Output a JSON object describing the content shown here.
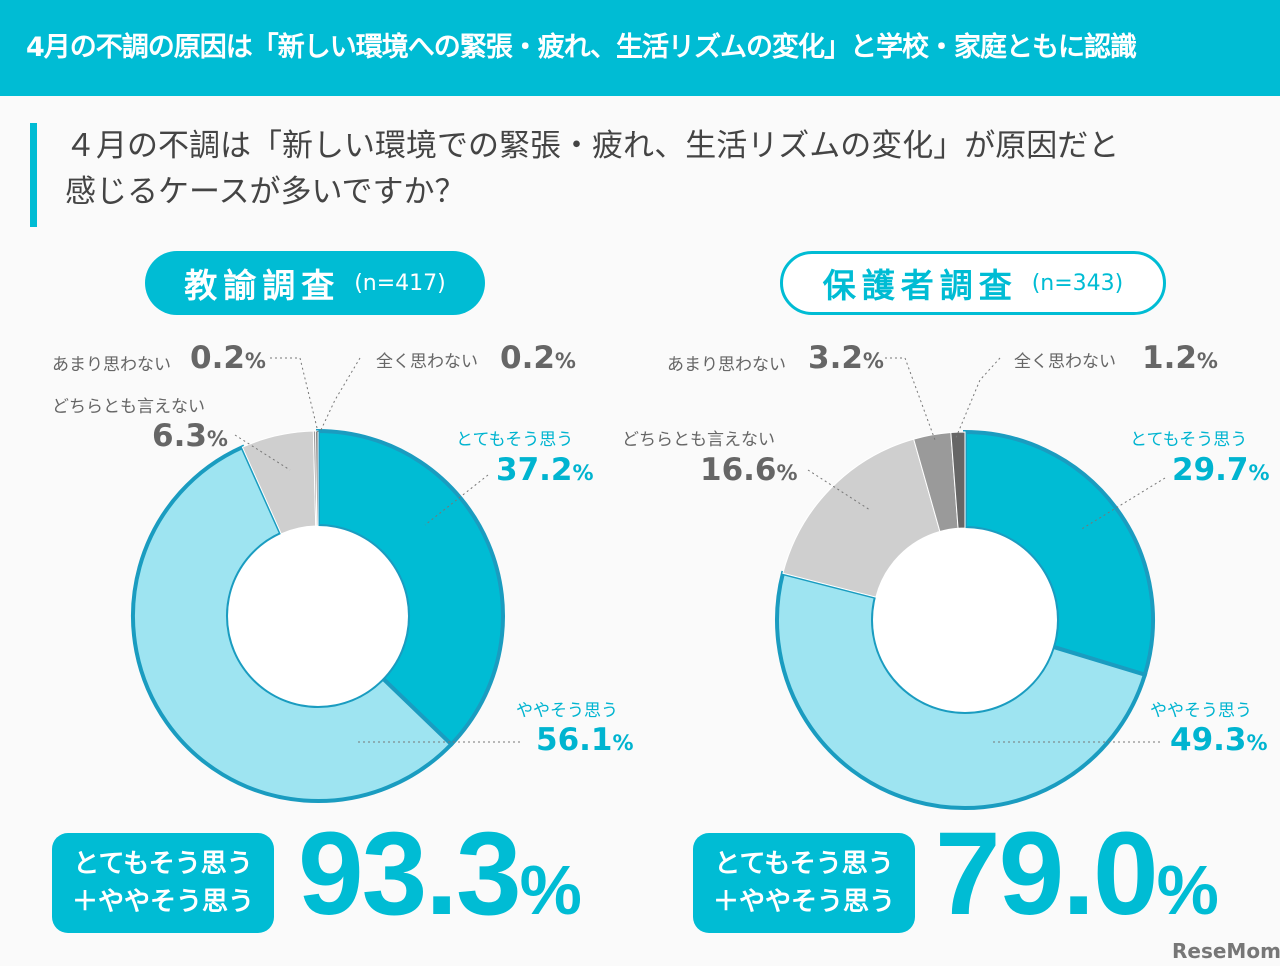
{
  "header": {
    "title": "4月の不調の原因は「新しい環境への緊張・疲れ、生活リズムの変化」と学校・家庭ともに認識"
  },
  "question": {
    "line1": "４月の不調は「新しい環境での緊張・疲れ、生活リズムの変化」が原因だと",
    "line2": "感じるケースが多いですか？"
  },
  "chart_data": [
    {
      "type": "pie",
      "title": "教諭調査",
      "n": "(n=417)",
      "categories": [
        "とてもそう思う",
        "ややそう思う",
        "どちらとも言えない",
        "あまり思わない",
        "全く思わない"
      ],
      "values": [
        37.2,
        56.1,
        6.3,
        0.2,
        0.2
      ],
      "colors": [
        "#00bcd4",
        "#9ee4f1",
        "#cfcfcf",
        "#9a9a9a",
        "#666666"
      ],
      "summary_label_1": "とてもそう思う",
      "summary_label_2": "＋ややそう思う",
      "summary_value": "93.3",
      "summary_unit": "%"
    },
    {
      "type": "pie",
      "title": "保護者調査",
      "n": "(n=343)",
      "categories": [
        "とてもそう思う",
        "ややそう思う",
        "どちらとも言えない",
        "あまり思わない",
        "全く思わない"
      ],
      "values": [
        29.7,
        49.3,
        16.6,
        3.2,
        1.2
      ],
      "colors": [
        "#00bcd4",
        "#9ee4f1",
        "#cfcfcf",
        "#9a9a9a",
        "#666666"
      ],
      "summary_label_1": "とてもそう思う",
      "summary_label_2": "＋ややそう思う",
      "summary_value": "79.0",
      "summary_unit": "%"
    }
  ],
  "unit": "%",
  "logo": "ReseMom"
}
